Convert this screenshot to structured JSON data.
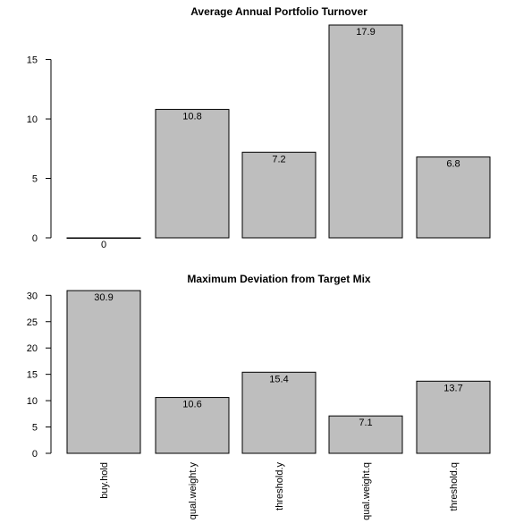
{
  "chart_data": [
    {
      "type": "bar",
      "title": "Average Annual Portfolio Turnover",
      "categories": [
        "buy.hold",
        "qual.weight.y",
        "threshold.y",
        "qual.weight.q",
        "threshold.q"
      ],
      "values": [
        0,
        10.8,
        7.2,
        17.9,
        6.8
      ],
      "data_labels": [
        "0",
        "10.8",
        "7.2",
        "17.9",
        "6.8"
      ],
      "yticks": [
        0,
        5,
        10,
        15
      ],
      "ylim": [
        0,
        17.9
      ],
      "xlabel": "",
      "ylabel": "",
      "bar_color": "#bebebe",
      "border_color": "#000000",
      "show_category_labels": false,
      "grid": false
    },
    {
      "type": "bar",
      "title": "Maximum Deviation from Target Mix",
      "categories": [
        "buy.hold",
        "qual.weight.y",
        "threshold.y",
        "qual.weight.q",
        "threshold.q"
      ],
      "values": [
        30.9,
        10.6,
        15.4,
        7.1,
        13.7
      ],
      "data_labels": [
        "30.9",
        "10.6",
        "15.4",
        "7.1",
        "13.7"
      ],
      "yticks": [
        0,
        5,
        10,
        15,
        20,
        25,
        30
      ],
      "ylim": [
        0,
        30.9
      ],
      "xlabel": "",
      "ylabel": "",
      "bar_color": "#bebebe",
      "border_color": "#000000",
      "show_category_labels": true,
      "grid": false
    }
  ]
}
